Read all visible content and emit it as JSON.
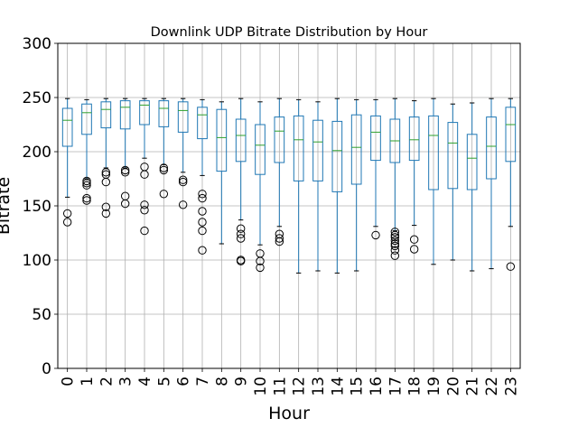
{
  "chart_data": {
    "type": "box",
    "title": "Downlink UDP Bitrate Distribution by Hour",
    "xlabel": "Hour",
    "ylabel": "Bitrate",
    "ylim": [
      0,
      300
    ],
    "yticks": [
      0,
      50,
      100,
      150,
      200,
      250,
      300
    ],
    "grid": true,
    "box_color": "#1f77b4",
    "median_color": "#2ca02c",
    "categories": [
      "0",
      "1",
      "2",
      "3",
      "4",
      "5",
      "6",
      "7",
      "8",
      "9",
      "10",
      "11",
      "12",
      "13",
      "14",
      "15",
      "16",
      "17",
      "18",
      "19",
      "20",
      "21",
      "22",
      "23"
    ],
    "boxes": [
      {
        "whislo": 158,
        "q1": 205,
        "med": 229,
        "q3": 240,
        "whishi": 249,
        "fliers": [
          143,
          135
        ]
      },
      {
        "whislo": 175,
        "q1": 216,
        "med": 236,
        "q3": 244,
        "whishi": 248,
        "fliers": [
          173,
          171,
          169,
          157,
          155
        ]
      },
      {
        "whislo": 185,
        "q1": 222,
        "med": 239,
        "q3": 246,
        "whishi": 249,
        "fliers": [
          181,
          179,
          172,
          149,
          143
        ]
      },
      {
        "whislo": 185,
        "q1": 221,
        "med": 241,
        "q3": 247,
        "whishi": 249,
        "fliers": [
          183,
          181,
          159,
          152
        ]
      },
      {
        "whislo": 194,
        "q1": 225,
        "med": 243,
        "q3": 247,
        "whishi": 249,
        "fliers": [
          186,
          179,
          151,
          146,
          127
        ]
      },
      {
        "whislo": 188,
        "q1": 223,
        "med": 240,
        "q3": 247,
        "whishi": 249,
        "fliers": [
          185,
          183,
          161
        ]
      },
      {
        "whislo": 181,
        "q1": 218,
        "med": 238,
        "q3": 246,
        "whishi": 249,
        "fliers": [
          174,
          172,
          151
        ]
      },
      {
        "whislo": 178,
        "q1": 212,
        "med": 234,
        "q3": 241,
        "whishi": 248,
        "fliers": [
          161,
          157,
          145,
          135,
          127,
          109
        ]
      },
      {
        "whislo": 115,
        "q1": 182,
        "med": 213,
        "q3": 239,
        "whishi": 246,
        "fliers": []
      },
      {
        "whislo": 137,
        "q1": 191,
        "med": 215,
        "q3": 230,
        "whishi": 249,
        "fliers": [
          129,
          124,
          120,
          100,
          99
        ]
      },
      {
        "whislo": 114,
        "q1": 179,
        "med": 206,
        "q3": 225,
        "whishi": 246,
        "fliers": [
          106,
          99,
          93
        ]
      },
      {
        "whislo": 131,
        "q1": 190,
        "med": 219,
        "q3": 232,
        "whishi": 249,
        "fliers": [
          124,
          120,
          117
        ]
      },
      {
        "whislo": 88,
        "q1": 173,
        "med": 211,
        "q3": 233,
        "whishi": 248,
        "fliers": []
      },
      {
        "whislo": 90,
        "q1": 173,
        "med": 209,
        "q3": 229,
        "whishi": 246,
        "fliers": []
      },
      {
        "whislo": 88,
        "q1": 163,
        "med": 201,
        "q3": 228,
        "whishi": 249,
        "fliers": []
      },
      {
        "whislo": 90,
        "q1": 170,
        "med": 204,
        "q3": 234,
        "whishi": 248,
        "fliers": []
      },
      {
        "whislo": 131,
        "q1": 192,
        "med": 218,
        "q3": 233,
        "whishi": 248,
        "fliers": [
          123
        ]
      },
      {
        "whislo": 127,
        "q1": 190,
        "med": 210,
        "q3": 230,
        "whishi": 249,
        "fliers": [
          126,
          123,
          121,
          118,
          115,
          113,
          109,
          104
        ]
      },
      {
        "whislo": 132,
        "q1": 192,
        "med": 211,
        "q3": 232,
        "whishi": 247,
        "fliers": [
          119,
          110
        ]
      },
      {
        "whislo": 96,
        "q1": 165,
        "med": 215,
        "q3": 233,
        "whishi": 249,
        "fliers": []
      },
      {
        "whislo": 100,
        "q1": 166,
        "med": 208,
        "q3": 227,
        "whishi": 244,
        "fliers": []
      },
      {
        "whislo": 90,
        "q1": 165,
        "med": 194,
        "q3": 216,
        "whishi": 245,
        "fliers": []
      },
      {
        "whislo": 92,
        "q1": 175,
        "med": 205,
        "q3": 232,
        "whishi": 249,
        "fliers": []
      },
      {
        "whislo": 131,
        "q1": 191,
        "med": 225,
        "q3": 241,
        "whishi": 249,
        "fliers": [
          94
        ]
      }
    ]
  }
}
